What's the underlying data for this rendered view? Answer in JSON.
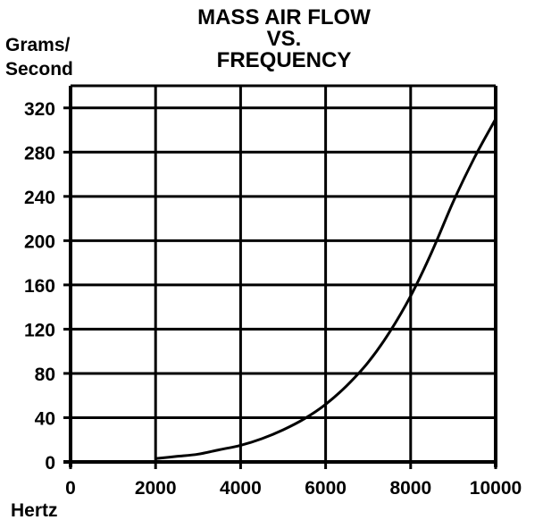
{
  "chart_data": {
    "type": "line",
    "title": [
      "MASS AIR FLOW",
      "VS.",
      "FREQUENCY"
    ],
    "ylabel": [
      "Grams/",
      "Second"
    ],
    "xlabel": "Hertz",
    "xlim": [
      0,
      10000
    ],
    "ylim": [
      0,
      340
    ],
    "xticks": [
      0,
      2000,
      4000,
      6000,
      8000,
      10000
    ],
    "yticks": [
      0,
      40,
      80,
      120,
      160,
      200,
      240,
      280,
      320
    ],
    "grid": true,
    "series": [
      {
        "x": [
          2000,
          2500,
          3000,
          3500,
          4000,
          4500,
          5000,
          5500,
          6000,
          6500,
          7000,
          7500,
          8000,
          8500,
          9000,
          9500,
          10000
        ],
        "y": [
          3,
          5,
          7,
          11,
          15,
          21,
          29,
          39,
          52,
          69,
          90,
          117,
          150,
          190,
          235,
          275,
          310
        ]
      }
    ]
  }
}
